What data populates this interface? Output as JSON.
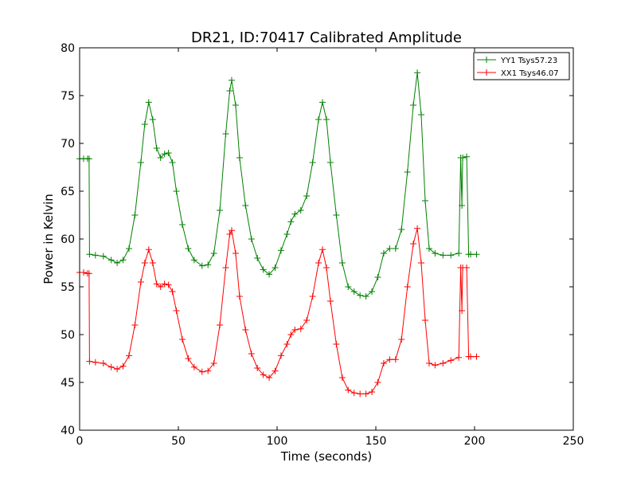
{
  "chart_data": {
    "type": "line",
    "title": "DR21, ID:70417 Calibrated Amplitude",
    "xlabel": "Time (seconds)",
    "ylabel": "Power in Kelvin",
    "xlim": [
      0,
      250
    ],
    "ylim": [
      40,
      80
    ],
    "xticks": [
      0,
      50,
      100,
      150,
      200,
      250
    ],
    "yticks": [
      40,
      45,
      50,
      55,
      60,
      65,
      70,
      75,
      80
    ],
    "grid": false,
    "legend_position": "top-right",
    "marker": "+",
    "series": [
      {
        "name": "YY1 Tsys57.23",
        "color": "#008000",
        "points": [
          [
            0,
            68.4
          ],
          [
            2,
            68.4
          ],
          [
            4,
            68.4
          ],
          [
            4.8,
            68.4
          ],
          [
            5,
            58.4
          ],
          [
            8,
            58.3
          ],
          [
            12,
            58.2
          ],
          [
            16,
            57.8
          ],
          [
            19,
            57.5
          ],
          [
            22,
            57.8
          ],
          [
            25,
            59.0
          ],
          [
            28,
            62.5
          ],
          [
            31,
            68.0
          ],
          [
            33,
            72.0
          ],
          [
            35,
            74.3
          ],
          [
            37,
            72.5
          ],
          [
            39,
            69.5
          ],
          [
            41,
            68.5
          ],
          [
            43,
            68.9
          ],
          [
            45,
            69.0
          ],
          [
            47,
            68.0
          ],
          [
            49,
            65.0
          ],
          [
            52,
            61.5
          ],
          [
            55,
            59.0
          ],
          [
            58,
            57.8
          ],
          [
            62,
            57.2
          ],
          [
            65,
            57.3
          ],
          [
            68,
            58.5
          ],
          [
            71,
            63.0
          ],
          [
            74,
            71.0
          ],
          [
            76,
            75.5
          ],
          [
            77,
            76.6
          ],
          [
            79,
            74.0
          ],
          [
            81,
            68.5
          ],
          [
            84,
            63.5
          ],
          [
            87,
            60.0
          ],
          [
            90,
            58.0
          ],
          [
            93,
            56.8
          ],
          [
            96,
            56.3
          ],
          [
            99,
            57.0
          ],
          [
            102,
            58.8
          ],
          [
            105,
            60.5
          ],
          [
            107,
            61.8
          ],
          [
            109,
            62.6
          ],
          [
            112,
            63.0
          ],
          [
            115,
            64.5
          ],
          [
            118,
            68.0
          ],
          [
            121,
            72.5
          ],
          [
            123,
            74.3
          ],
          [
            125,
            72.5
          ],
          [
            127,
            68.0
          ],
          [
            130,
            62.5
          ],
          [
            133,
            57.5
          ],
          [
            136,
            55.0
          ],
          [
            139,
            54.5
          ],
          [
            142,
            54.1
          ],
          [
            145,
            54.0
          ],
          [
            148,
            54.5
          ],
          [
            151,
            56.0
          ],
          [
            154,
            58.5
          ],
          [
            157,
            59.0
          ],
          [
            160,
            59.0
          ],
          [
            163,
            61.0
          ],
          [
            166,
            67.0
          ],
          [
            169,
            74.0
          ],
          [
            171,
            77.4
          ],
          [
            173,
            73.0
          ],
          [
            175,
            64.0
          ],
          [
            177,
            59.0
          ],
          [
            180,
            58.5
          ],
          [
            184,
            58.3
          ],
          [
            188,
            58.3
          ],
          [
            192,
            58.5
          ],
          [
            193,
            68.5
          ],
          [
            193.6,
            63.5
          ],
          [
            194,
            68.5
          ],
          [
            196,
            68.6
          ],
          [
            197,
            58.4
          ],
          [
            198,
            58.4
          ],
          [
            201,
            58.4
          ]
        ]
      },
      {
        "name": "XX1 Tsys46.07",
        "color": "#ff0000",
        "points": [
          [
            0,
            56.5
          ],
          [
            2,
            56.5
          ],
          [
            4,
            56.4
          ],
          [
            4.8,
            56.4
          ],
          [
            5,
            47.2
          ],
          [
            8,
            47.1
          ],
          [
            12,
            47.0
          ],
          [
            16,
            46.6
          ],
          [
            19,
            46.4
          ],
          [
            22,
            46.7
          ],
          [
            25,
            47.8
          ],
          [
            28,
            51.0
          ],
          [
            31,
            55.5
          ],
          [
            33,
            57.5
          ],
          [
            35,
            58.9
          ],
          [
            37,
            57.5
          ],
          [
            39,
            55.3
          ],
          [
            41,
            55.0
          ],
          [
            43,
            55.3
          ],
          [
            45,
            55.2
          ],
          [
            47,
            54.5
          ],
          [
            49,
            52.5
          ],
          [
            52,
            49.5
          ],
          [
            55,
            47.5
          ],
          [
            58,
            46.6
          ],
          [
            62,
            46.1
          ],
          [
            65,
            46.2
          ],
          [
            68,
            47.0
          ],
          [
            71,
            51.0
          ],
          [
            74,
            57.0
          ],
          [
            76,
            60.5
          ],
          [
            77,
            60.9
          ],
          [
            79,
            58.5
          ],
          [
            81,
            54.0
          ],
          [
            84,
            50.5
          ],
          [
            87,
            48.0
          ],
          [
            90,
            46.5
          ],
          [
            93,
            45.8
          ],
          [
            96,
            45.5
          ],
          [
            99,
            46.2
          ],
          [
            102,
            47.8
          ],
          [
            105,
            49.0
          ],
          [
            107,
            50.0
          ],
          [
            109,
            50.5
          ],
          [
            112,
            50.6
          ],
          [
            115,
            51.5
          ],
          [
            118,
            54.0
          ],
          [
            121,
            57.5
          ],
          [
            123,
            58.9
          ],
          [
            125,
            57.0
          ],
          [
            127,
            53.5
          ],
          [
            130,
            49.0
          ],
          [
            133,
            45.5
          ],
          [
            136,
            44.2
          ],
          [
            139,
            43.9
          ],
          [
            142,
            43.8
          ],
          [
            145,
            43.8
          ],
          [
            148,
            44.0
          ],
          [
            151,
            45.0
          ],
          [
            154,
            47.0
          ],
          [
            157,
            47.4
          ],
          [
            160,
            47.4
          ],
          [
            163,
            49.5
          ],
          [
            166,
            55.0
          ],
          [
            169,
            59.5
          ],
          [
            171,
            61.1
          ],
          [
            173,
            57.5
          ],
          [
            175,
            51.5
          ],
          [
            177,
            47.0
          ],
          [
            180,
            46.8
          ],
          [
            184,
            47.0
          ],
          [
            188,
            47.3
          ],
          [
            192,
            47.6
          ],
          [
            193,
            57.0
          ],
          [
            193.6,
            52.5
          ],
          [
            194,
            57.0
          ],
          [
            196,
            57.0
          ],
          [
            197,
            47.7
          ],
          [
            198,
            47.7
          ],
          [
            201,
            47.7
          ]
        ]
      }
    ]
  }
}
